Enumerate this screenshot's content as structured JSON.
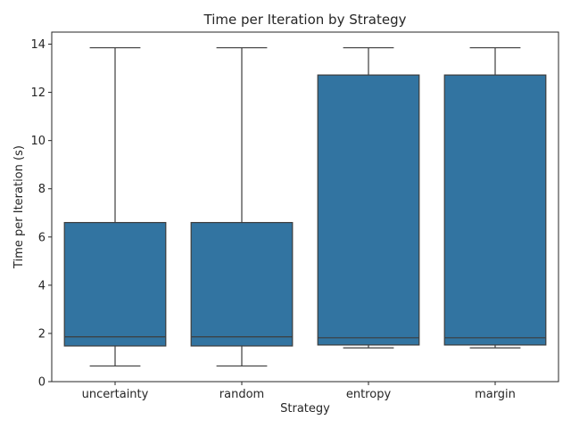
{
  "chart_data": {
    "type": "box",
    "title": "Time per Iteration by Strategy",
    "xlabel": "Strategy",
    "ylabel": "Time per Iteration (s)",
    "ylim": [
      0,
      14.5
    ],
    "yticks": [
      0,
      2,
      4,
      6,
      8,
      10,
      12,
      14
    ],
    "categories": [
      "uncertainty",
      "random",
      "entropy",
      "margin"
    ],
    "boxes": [
      {
        "category": "uncertainty",
        "whisker_low": 0.65,
        "q1": 1.48,
        "median": 1.86,
        "q3": 6.6,
        "whisker_high": 13.85
      },
      {
        "category": "random",
        "whisker_low": 0.65,
        "q1": 1.48,
        "median": 1.86,
        "q3": 6.6,
        "whisker_high": 13.85
      },
      {
        "category": "entropy",
        "whisker_low": 1.4,
        "q1": 1.52,
        "median": 1.82,
        "q3": 12.72,
        "whisker_high": 13.85
      },
      {
        "category": "margin",
        "whisker_low": 1.4,
        "q1": 1.52,
        "median": 1.82,
        "q3": 12.72,
        "whisker_high": 13.85
      }
    ],
    "box_color": "#3274a1",
    "line_color": "#3d3d3d",
    "grid": false,
    "legend": "none"
  }
}
